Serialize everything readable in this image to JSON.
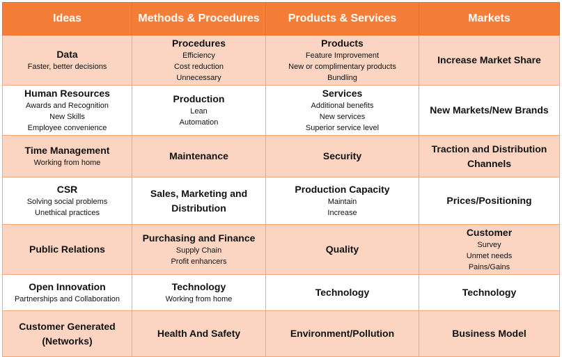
{
  "headers": [
    "Ideas",
    "Methods & Procedures",
    "Products & Services",
    "Markets"
  ],
  "rows": [
    {
      "style": "peach",
      "cells": [
        {
          "title": "Data",
          "items": [
            "Faster, better decisions"
          ]
        },
        {
          "title": "Procedures",
          "items": [
            "Efficiency",
            "Cost reduction",
            "Unnecessary"
          ]
        },
        {
          "title": "Products",
          "items": [
            "Feature Improvement",
            "New or complimentary products",
            "Bundling"
          ]
        },
        {
          "title": "Increase Market Share",
          "items": []
        }
      ]
    },
    {
      "style": "white",
      "cells": [
        {
          "title": "Human Resources",
          "items": [
            "Awards and Recognition",
            "New Skills",
            "Employee convenience"
          ]
        },
        {
          "title": "Production",
          "items": [
            "Lean",
            "Automation"
          ]
        },
        {
          "title": "Services",
          "items": [
            "Additional benefits",
            "New services",
            "Superior service level"
          ]
        },
        {
          "title": "New Markets/New Brands",
          "items": []
        }
      ]
    },
    {
      "style": "peach",
      "cells": [
        {
          "title": "Time Management",
          "items": [
            "Working from home"
          ]
        },
        {
          "title": "Maintenance",
          "items": []
        },
        {
          "title": "Security",
          "items": []
        },
        {
          "title": "Traction and Distribution Channels",
          "items": []
        }
      ]
    },
    {
      "style": "white",
      "cells": [
        {
          "title": "CSR",
          "items": [
            "Solving social problems",
            "Unethical practices"
          ]
        },
        {
          "title": "Sales, Marketing and Distribution",
          "items": []
        },
        {
          "title": "Production Capacity",
          "items": [
            "Maintain",
            "Increase"
          ]
        },
        {
          "title": "Prices/Positioning",
          "items": []
        }
      ]
    },
    {
      "style": "peach",
      "cells": [
        {
          "title": "Public Relations",
          "items": []
        },
        {
          "title": "Purchasing and Finance",
          "items": [
            "Supply Chain",
            "Profit enhancers"
          ]
        },
        {
          "title": "Quality",
          "items": []
        },
        {
          "title": "Customer",
          "items": [
            "Survey",
            "Unmet needs",
            "Pains/Gains"
          ]
        }
      ]
    },
    {
      "style": "white",
      "cells": [
        {
          "title": "Open Innovation",
          "items": [
            "Partnerships and Collaboration"
          ]
        },
        {
          "title": "Technology",
          "items": [
            "Working from home"
          ]
        },
        {
          "title": "Technology",
          "items": []
        },
        {
          "title": "Technology",
          "items": []
        }
      ]
    },
    {
      "style": "peach",
      "cells": [
        {
          "title": "Customer Generated (Networks)",
          "items": []
        },
        {
          "title": "Health And Safety",
          "items": []
        },
        {
          "title": "Environment/Pollution",
          "items": []
        },
        {
          "title": "Business Model",
          "items": []
        }
      ]
    }
  ]
}
